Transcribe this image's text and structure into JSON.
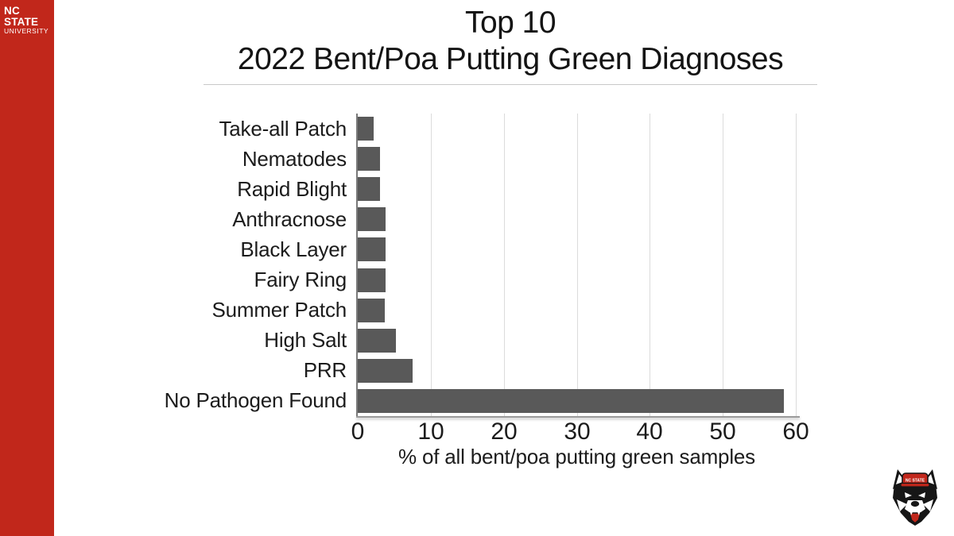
{
  "brand": {
    "line1": "NC STATE",
    "line2": "UNIVERSITY"
  },
  "title": {
    "line1": "Top 10",
    "line2": "2022 Bent/Poa Putting Green Diagnoses"
  },
  "logo": {
    "cap_text": "NC STATE"
  },
  "colors": {
    "brand_red": "#C1271B",
    "bar_gray": "#595959",
    "gridline": "#DBDBDB",
    "axis_line": "#7A7A7A",
    "baseline": "#9B9B9B",
    "divider": "#C9C9C9",
    "text": "#1C1C1C"
  },
  "chart_data": {
    "type": "bar",
    "orientation": "horizontal",
    "title": "Top 10 2022 Bent/Poa Putting Green Diagnoses",
    "categories": [
      "Take-all Patch",
      "Nematodes",
      "Rapid Blight",
      "Anthracnose",
      "Black Layer",
      "Fairy Ring",
      "Summer Patch",
      "High Salt",
      "PRR",
      "No Pathogen Found"
    ],
    "values": [
      2.2,
      3.0,
      3.0,
      3.8,
      3.8,
      3.8,
      3.7,
      5.2,
      7.5,
      58.4
    ],
    "xlabel": "% of all bent/poa putting green samples",
    "ylabel": "",
    "xlim": [
      0,
      60
    ],
    "xticks": [
      0,
      10,
      20,
      30,
      40,
      50,
      60
    ],
    "grid": true,
    "legend": false,
    "bar_color": "#595959"
  }
}
